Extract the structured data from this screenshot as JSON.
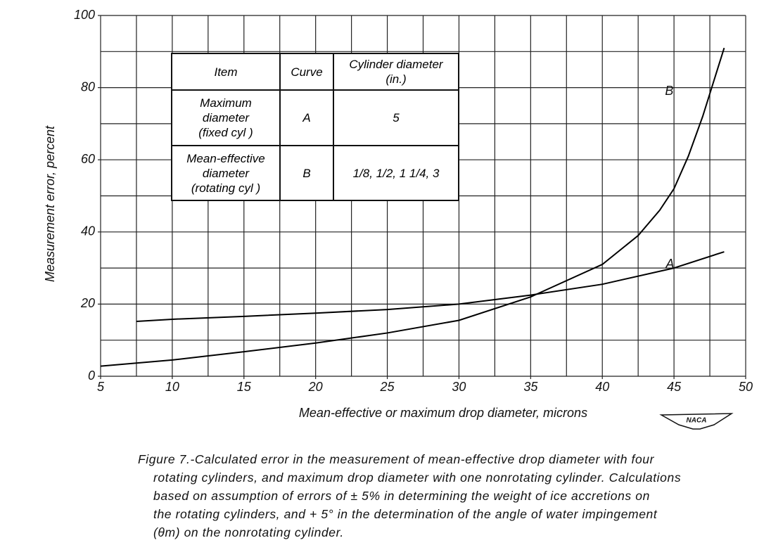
{
  "chart_data": {
    "type": "line",
    "x_label": "Mean-effective or maximum drop diameter, microns",
    "y_label": "Measurement error, percent",
    "xlim": [
      5,
      50
    ],
    "ylim": [
      0,
      100
    ],
    "xticks": [
      5,
      10,
      15,
      20,
      25,
      30,
      35,
      40,
      45,
      50
    ],
    "yticks": [
      0,
      20,
      40,
      60,
      80,
      100
    ],
    "grid": true,
    "minor_grid": {
      "x": 2.5,
      "y": 10
    },
    "series": [
      {
        "name": "A",
        "color": "#000000",
        "x": [
          7.5,
          10,
          15,
          20,
          25,
          30,
          35,
          40,
          45,
          48.5
        ],
        "values": [
          15.2,
          15.8,
          16.6,
          17.5,
          18.5,
          20,
          22.5,
          25.5,
          30,
          34.5
        ]
      },
      {
        "name": "B",
        "color": "#000000",
        "x": [
          5,
          10,
          15,
          20,
          25,
          30,
          35,
          40,
          42.5,
          44,
          45,
          46,
          47,
          48.5
        ],
        "values": [
          2.8,
          4.5,
          6.8,
          9.2,
          12,
          15.5,
          22,
          31,
          39,
          46,
          52,
          61,
          72,
          91
        ]
      }
    ]
  },
  "table": {
    "header": [
      [
        "Item"
      ],
      [
        "Curve"
      ],
      [
        "Cylinder diameter",
        "(in.)"
      ]
    ],
    "rows": [
      [
        [
          "Maximum",
          "diameter",
          "(fixed cyl )"
        ],
        [
          "A"
        ],
        [
          "5"
        ]
      ],
      [
        [
          "Mean-effective",
          "diameter",
          "(rotating cyl )"
        ],
        [
          "B"
        ],
        [
          "1/8,  1/2,  1 1/4,  3"
        ]
      ]
    ]
  },
  "logo": "NACA",
  "caption": [
    "Figure 7.-Calculated error in the measurement of mean-effective drop diameter with four",
    "rotating cylinders, and maximum drop diameter with one nonrotating cylinder. Calculations",
    "based on assumption of errors of ± 5% in determining the weight of ice accretions on",
    "the rotating cylinders, and + 5° in the determination of the angle of water impingement",
    "(θm) on the nonrotating cylinder."
  ]
}
